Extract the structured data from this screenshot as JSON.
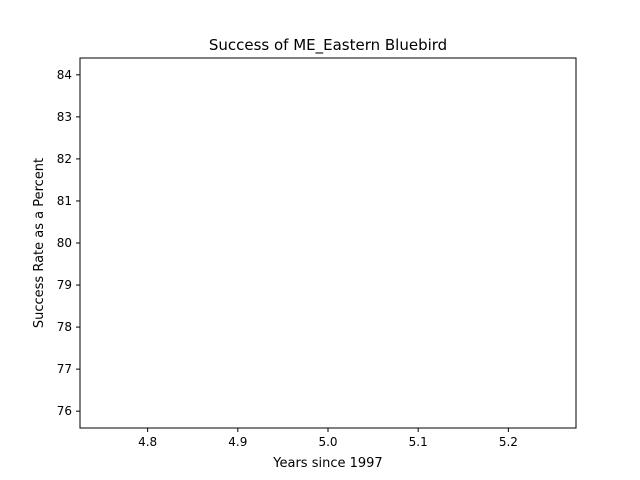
{
  "chart_data": {
    "type": "line",
    "title": "Success of ME_Eastern Bluebird",
    "xlabel": "Years since 1997",
    "ylabel": "Success Rate as a Percent",
    "xlim": [
      4.725,
      5.275
    ],
    "ylim": [
      75.6,
      84.4
    ],
    "xticks": [
      "4.8",
      "4.9",
      "5.0",
      "5.1",
      "5.2"
    ],
    "yticks": [
      "76",
      "77",
      "78",
      "79",
      "80",
      "81",
      "82",
      "83",
      "84"
    ],
    "grid": false,
    "series": [
      {
        "x": [],
        "y": []
      }
    ]
  }
}
